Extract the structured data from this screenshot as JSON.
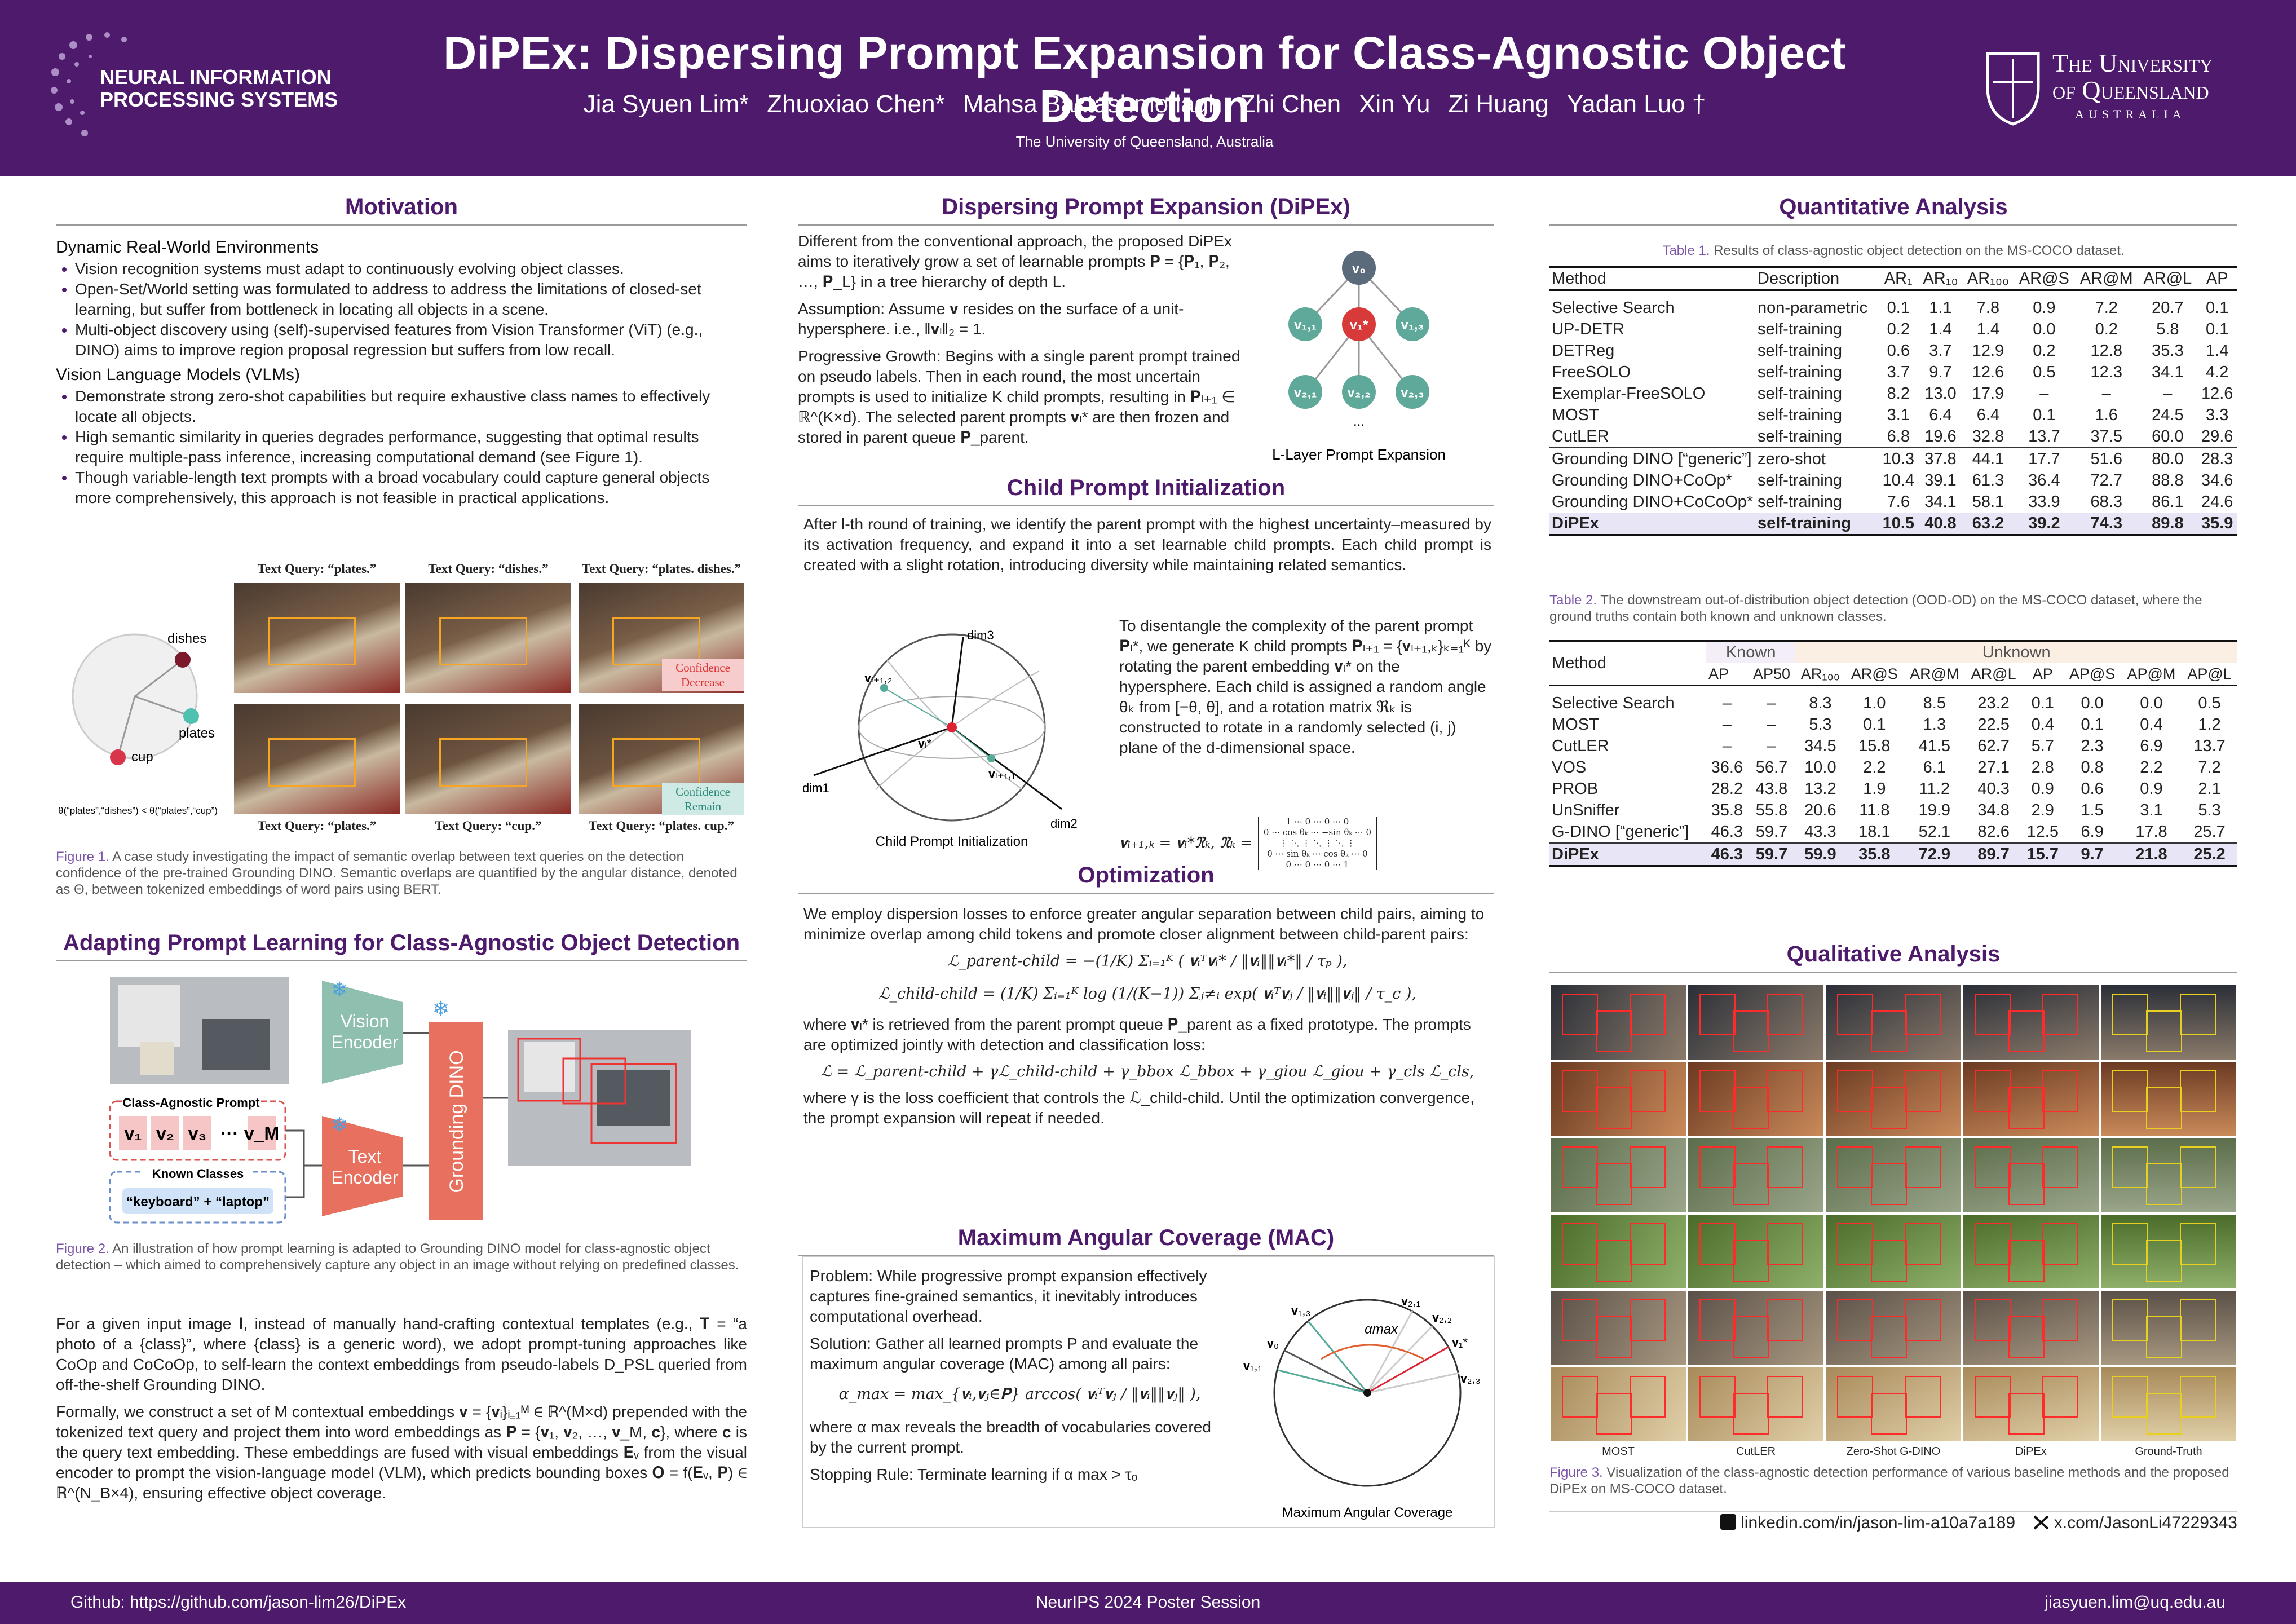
{
  "header": {
    "logo_left": [
      "NEURAL INFORMATION",
      "PROCESSING SYSTEMS"
    ],
    "title": "DiPEx: Dispersing Prompt Expansion for Class-Agnostic Object Detection",
    "authors": [
      "Jia Syuen Lim*",
      "Zhuoxiao Chen*",
      "Mahsa Baktashmotlagh",
      "Zhi Chen",
      "Xin Yu",
      "Zi Huang",
      "Yadan Luo †"
    ],
    "affiliation": "The University of Queensland, Australia",
    "logo_right": [
      "The University",
      "of Queensland",
      "AUSTRALIA"
    ]
  },
  "motivation": {
    "heading": "Motivation",
    "sub1": "Dynamic Real-World Environments",
    "bullets1": [
      "Vision recognition systems must adapt to continuously evolving object classes.",
      "Open-Set/World setting was formulated to address to address the limitations of closed-set learning, but suffer from bottleneck in locating all objects in a scene.",
      "Multi-object discovery using (self)-supervised features from Vision Transformer (ViT) (e.g., DINO) aims to improve region proposal regression but suffers from low recall."
    ],
    "sub2": "Vision Language Models (VLMs)",
    "bullets2": [
      "Demonstrate strong zero-shot capabilities but require exhaustive class names to effectively locate all objects.",
      "High semantic similarity in queries degrades performance, suggesting that optimal results require multiple-pass inference, increasing computational demand (see Figure 1).",
      "Though variable-length text prompts with a broad vocabulary could capture general objects more comprehensively, this approach is not feasible in practical applications."
    ]
  },
  "figure1": {
    "queries": [
      "Text Query: “plates.”",
      "Text Query: “dishes.”",
      "Text Query: “plates. dishes.”",
      "Text Query: “plates.”",
      "Text Query: “cup.”",
      "Text Query: “plates. cup.”"
    ],
    "notes": [
      "Confidence Decrease",
      "Confidence Remain"
    ],
    "points": [
      "dishes",
      "plates",
      "cup"
    ],
    "inequality": "θ(“plates”,“dishes”) < θ(“plates”,“cup”)",
    "caption_label": "Figure 1.",
    "caption": "A case study investigating the impact of semantic overlap between text queries on the detection confidence of the pre-trained Grounding DINO. Semantic overlaps are quantified by the angular distance, denoted as Θ, between tokenized embeddings of word pairs using BERT."
  },
  "adapting": {
    "heading": "Adapting Prompt Learning for Class-Agnostic Object Detection",
    "paragraphs": [
      "For a given input image 𝐈, instead of manually hand-crafting contextual templates (e.g., 𝐓 = “a photo of a {class}”, where {class} is a generic word), we adopt prompt-tuning approaches like CoOp and CoCoOp, to self-learn the context embeddings from pseudo-labels D_PSL queried from off-the-shelf Grounding DINO.",
      "Formally, we construct a set of M contextual embeddings 𝐯 = {𝐯ᵢ}ᵢ₌₁ᴹ ∈ ℝ^(M×d) prepended with the tokenized text query and project them into word embeddings as 𝐏 = {𝐯₁, 𝐯₂, …, 𝐯_M, 𝐜}, where 𝐜 is the query text embedding. These embeddings are fused with visual embeddings 𝐄ᵥ from the visual encoder to prompt the vision-language model (VLM), which predicts bounding boxes 𝐎 = f(𝐄ᵥ, 𝐏) ∈ ℝ^(N_B×4), ensuring effective object coverage."
    ]
  },
  "figure2": {
    "vision_encoder": [
      "Vision",
      "Encoder"
    ],
    "text_encoder": [
      "Text",
      "Encoder"
    ],
    "detector": "Grounding DINO",
    "prompt_title": "Class-Agnostic Prompt",
    "prompt_tokens": [
      "v₁",
      "v₂",
      "v₃",
      "···",
      "v_M"
    ],
    "known_title": "Known Classes",
    "known": "“keyboard” + “laptop”",
    "caption_label": "Figure 2.",
    "caption": "An illustration of how prompt learning is adapted to Grounding DINO model for class-agnostic object detection – which aimed to comprehensively capture any object in an image without relying on predefined classes."
  },
  "dipex": {
    "heading": "Dispersing Prompt Expansion (DiPEx)",
    "intro": "Different from the conventional approach, the proposed DiPEx aims to iteratively grow a set of learnable prompts 𝐏 = {𝐏₁, 𝐏₂, …, 𝐏_L} in a tree hierarchy of depth L.",
    "assumption": {
      "label": "Assumption:",
      "text": "Assume 𝐯 resides on the surface of a unit-hypersphere. i.e., ‖𝐯ₗ‖₂ = 1."
    },
    "growth": {
      "label": "Progressive Growth:",
      "text": "Begins with a single parent prompt trained on pseudo labels. Then in each round, the most uncertain prompts is used to initialize K child prompts, resulting in 𝐏ₗ₊₁ ∈ ℝ^(K×d). The selected parent prompts 𝐯ₗ* are then frozen and stored in parent queue 𝐏_parent."
    },
    "tree_nodes": [
      "v₀",
      "v₁,₁",
      "v₁*",
      "v₁,₃",
      "v₂,₁",
      "v₂,₂",
      "v₂,₃",
      "..."
    ],
    "tree_caption": "L-Layer Prompt Expansion"
  },
  "child": {
    "heading": "Child Prompt Initialization",
    "p1": "After l-th round of training, we identify the parent prompt with the highest uncertainty–measured by its activation frequency, and expand it into a set learnable child prompts. Each child prompt is created with a slight rotation, introducing diversity while maintaining related semantics.",
    "p2": "To disentangle the complexity of the parent prompt 𝐏ₗ*, we generate K child prompts 𝐏ₗ₊₁ = {𝐯ₗ₊₁,ₖ}ₖ₌₁ᴷ by rotating the parent embedding 𝐯ₗ* on the hypersphere. Each child is assigned a random angle θₖ from [−θ, θ], and a rotation matrix ℜₖ is constructed to rotate in a randomly selected (i, j) plane of the d-dimensional space.",
    "equation": "𝐯ₗ₊₁,ₖ = 𝐯ₗ*ℜₖ,    ℜₖ =",
    "matrix": [
      "1 ⋯ 0 ⋯ 0 ⋯ 0",
      "0 ⋯ cos θₖ ⋯ −sin θₖ ⋯ 0",
      "⋮ ⋱ ⋮ ⋱ ⋮ ⋱ ⋮",
      "0 ⋯ sin θₖ ⋯ cos θₖ ⋯ 0",
      "0 ⋯ 0 ⋯ 0 ⋯ 1"
    ],
    "diagram_labels": [
      "dim1",
      "dim2",
      "dim3",
      "𝐯ₗ₊₁,₂",
      "𝐯ₗ*",
      "𝐯ₗ₊₁,₁"
    ],
    "diagram_caption": "Child Prompt Initialization"
  },
  "optimization": {
    "heading": "Optimization",
    "p1": "We employ dispersion losses to enforce greater angular separation between child pairs, aiming to minimize overlap among child tokens and promote closer alignment between child-parent pairs:",
    "eq1": "ℒ_parent-child = −(1/K) Σᵢ₌₁ᴷ ( 𝐯ᵢᵀ𝐯ₗ* / ‖𝐯ᵢ‖‖𝐯ₗ*‖ / τₚ ),",
    "eq2": "ℒ_child-child = (1/K) Σᵢ₌₁ᴷ log (1/(K−1)) Σⱼ≠ᵢ exp( 𝐯ᵢᵀ𝐯ⱼ / ‖𝐯ᵢ‖‖𝐯ⱼ‖ / τ_c ),",
    "p2": "where 𝐯ₗ* is retrieved from the parent prompt queue 𝐏_parent as a fixed prototype. The prompts are optimized jointly with detection and classification loss:",
    "eq3": "ℒ = ℒ_parent-child + γℒ_child-child + γ_bbox ℒ_bbox + γ_giou ℒ_giou + γ_cls ℒ_cls,",
    "p3": "where γ is the loss coefficient that controls the ℒ_child-child. Until the optimization convergence, the prompt expansion will repeat if needed."
  },
  "mac": {
    "heading": "Maximum Angular Coverage (MAC)",
    "problem": {
      "label": "Problem:",
      "text": "While progressive prompt expansion effectively captures fine-grained semantics, it inevitably introduces computational overhead."
    },
    "solution": {
      "label": "Solution:",
      "text": "Gather all learned prompts P and evaluate the maximum angular coverage (MAC) among all pairs:"
    },
    "equation": "α_max = max_{𝐯ᵢ,𝐯ⱼ∈𝐏} arccos( 𝐯ᵢᵀ𝐯ⱼ / ‖𝐯ᵢ‖‖𝐯ⱼ‖ ),",
    "note": "where α max reveals the breadth of vocabularies covered by the current prompt.",
    "stopping": {
      "label": "Stopping Rule:",
      "text": "Terminate learning if α max > τₒ"
    },
    "diagram_labels": [
      "𝐯₁,₃",
      "𝐯₀",
      "𝐯₁,₁",
      "𝐯₂,₁",
      "𝐯₂,₂",
      "𝐯₁*",
      "𝐯₂,₃"
    ],
    "alpha": "αmax",
    "diagram_caption": "Maximum Angular Coverage"
  },
  "quantitative": {
    "heading": "Quantitative Analysis",
    "table1": {
      "caption_label": "Table 1.",
      "caption": "Results of class-agnostic object detection on the MS-COCO dataset.",
      "columns": [
        "Method",
        "Description",
        "AR₁",
        "AR₁₀",
        "AR₁₀₀",
        "AR@S",
        "AR@M",
        "AR@L",
        "AP"
      ],
      "sections": [
        [
          [
            "Selective Search",
            "non-parametric",
            "0.1",
            "1.1",
            "7.8",
            "0.9",
            "7.2",
            "20.7",
            "0.1"
          ],
          [
            "UP-DETR",
            "self-training",
            "0.2",
            "1.4",
            "1.4",
            "0.0",
            "0.2",
            "5.8",
            "0.1"
          ],
          [
            "DETReg",
            "self-training",
            "0.6",
            "3.7",
            "12.9",
            "0.2",
            "12.8",
            "35.3",
            "1.4"
          ],
          [
            "FreeSOLO",
            "self-training",
            "3.7",
            "9.7",
            "12.6",
            "0.5",
            "12.3",
            "34.1",
            "4.2"
          ],
          [
            "Exemplar-FreeSOLO",
            "self-training",
            "8.2",
            "13.0",
            "17.9",
            "–",
            "–",
            "–",
            "12.6"
          ],
          [
            "MOST",
            "self-training",
            "3.1",
            "6.4",
            "6.4",
            "0.1",
            "1.6",
            "24.5",
            "3.3"
          ],
          [
            "CutLER",
            "self-training",
            "6.8",
            "19.6",
            "32.8",
            "13.7",
            "37.5",
            "60.0",
            "29.6"
          ]
        ],
        [
          [
            "Grounding DINO [“generic”]",
            "zero-shot",
            "10.3",
            "37.8",
            "44.1",
            "17.7",
            "51.6",
            "80.0",
            "28.3"
          ],
          [
            "Grounding DINO+CoOp*",
            "self-training",
            "10.4",
            "39.1",
            "61.3",
            "36.4",
            "72.7",
            "88.8",
            "34.6"
          ],
          [
            "Grounding DINO+CoCoOp*",
            "self-training",
            "7.6",
            "34.1",
            "58.1",
            "33.9",
            "68.3",
            "86.1",
            "24.6"
          ],
          [
            "DiPEx",
            "self-training",
            "10.5",
            "40.8",
            "63.2",
            "39.2",
            "74.3",
            "89.8",
            "35.9"
          ]
        ]
      ]
    },
    "table2": {
      "caption_label": "Table 2.",
      "caption": "The downstream out-of-distribution object detection (OOD-OD) on the MS-COCO dataset, where the ground truths contain both known and unknown classes.",
      "method": "Method",
      "groups": [
        "Known",
        "Unknown"
      ],
      "columns": [
        "AP",
        "AP50",
        "AR₁₀₀",
        "AR@S",
        "AR@M",
        "AR@L",
        "AP",
        "AP@S",
        "AP@M",
        "AP@L"
      ],
      "sections": [
        [
          [
            "Selective Search",
            "–",
            "–",
            "8.3",
            "1.0",
            "8.5",
            "23.2",
            "0.1",
            "0.0",
            "0.0",
            "0.5"
          ],
          [
            "MOST",
            "–",
            "–",
            "5.3",
            "0.1",
            "1.3",
            "22.5",
            "0.4",
            "0.1",
            "0.4",
            "1.2"
          ],
          [
            "CutLER",
            "–",
            "–",
            "34.5",
            "15.8",
            "41.5",
            "62.7",
            "5.7",
            "2.3",
            "6.9",
            "13.7"
          ],
          [
            "VOS",
            "36.6",
            "56.7",
            "10.0",
            "2.2",
            "6.1",
            "27.1",
            "2.8",
            "0.8",
            "2.2",
            "7.2"
          ],
          [
            "PROB",
            "28.2",
            "43.8",
            "13.2",
            "1.9",
            "11.2",
            "40.3",
            "0.9",
            "0.6",
            "0.9",
            "2.1"
          ],
          [
            "UnSniffer",
            "35.8",
            "55.8",
            "20.6",
            "11.8",
            "19.9",
            "34.8",
            "2.9",
            "1.5",
            "3.1",
            "5.3"
          ],
          [
            "G-DINO [“generic”]",
            "46.3",
            "59.7",
            "43.3",
            "18.1",
            "52.1",
            "82.6",
            "12.5",
            "6.9",
            "17.8",
            "25.7"
          ]
        ],
        [
          [
            "DiPEx",
            "46.3",
            "59.7",
            "59.9",
            "35.8",
            "72.9",
            "89.7",
            "15.7",
            "9.7",
            "21.8",
            "25.2"
          ]
        ]
      ]
    }
  },
  "qualitative": {
    "heading": "Qualitative Analysis",
    "methods": [
      "MOST",
      "CutLER",
      "Zero-Shot G-DINO",
      "DiPEx",
      "Ground-Truth"
    ],
    "caption_label": "Figure 3.",
    "caption": "Visualization of the class-agnostic detection performance of various baseline methods and the proposed DiPEx on MS-COCO dataset."
  },
  "contacts": [
    "linkedin.com/in/jason-lim-a10a7a189",
    "x.com/JasonLi47229343"
  ],
  "footer": [
    "Github: https://github.com/jason-lim26/DiPEx",
    "NeurIPS 2024 Poster Session",
    "jiasyuen.lim@uq.edu.au"
  ]
}
